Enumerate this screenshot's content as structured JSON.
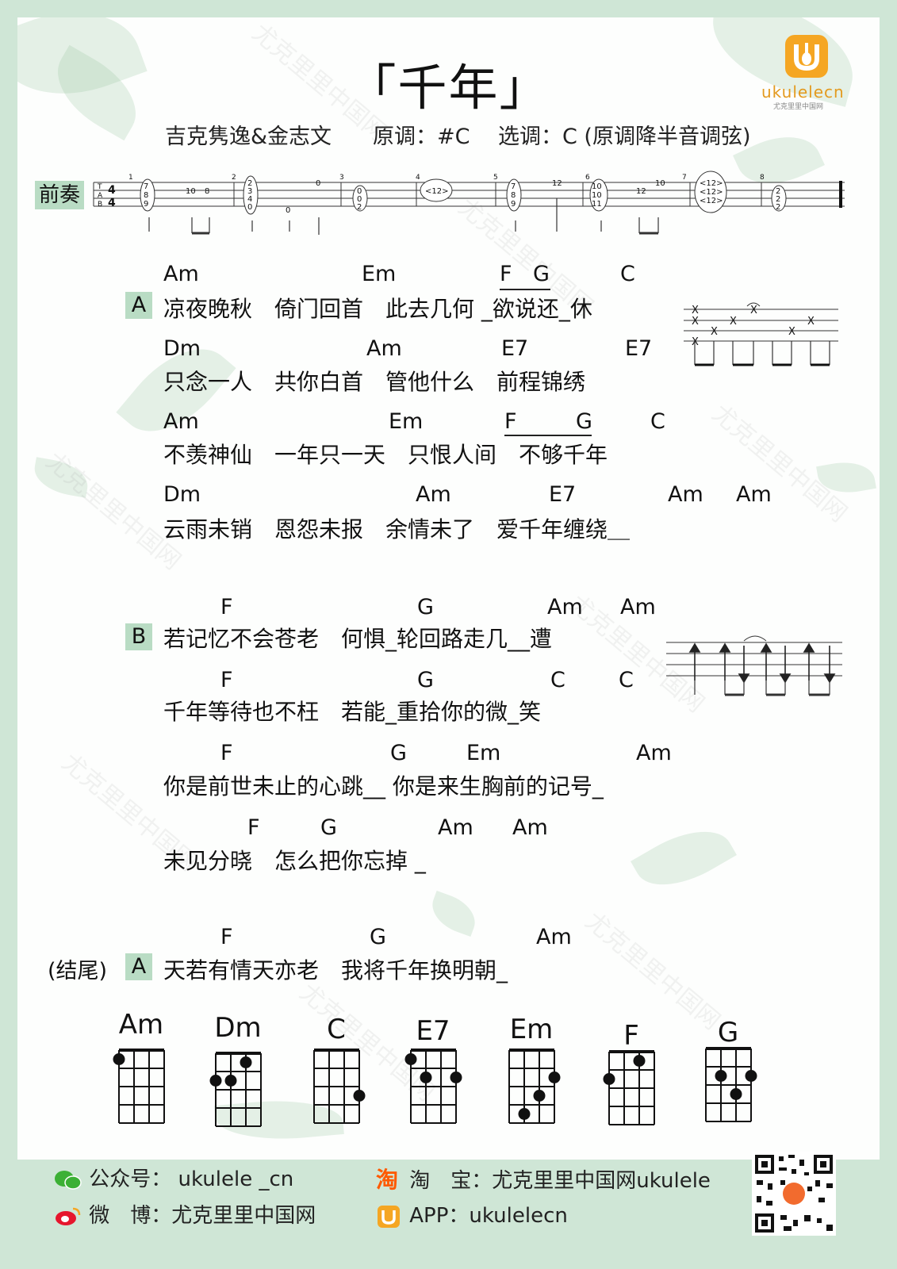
{
  "title": "「千年」",
  "subtitle": {
    "artists": "吉克隽逸&金志文",
    "original_key": "原调：#C",
    "selected_key": "选调：C (原调降半音调弦)"
  },
  "intro": {
    "label": "前奏",
    "time_sig_top": "4",
    "time_sig_bottom": "4",
    "tab_letters": [
      "T",
      "A",
      "B"
    ],
    "measure_numbers": [
      "1",
      "2",
      "3",
      "4",
      "5",
      "6",
      "7",
      "8"
    ],
    "notes": {
      "m1_chord": [
        "7",
        "8",
        "9"
      ],
      "m1_a": "10",
      "m1_b": "8",
      "m2_chord": [
        "2",
        "3",
        "4",
        "0"
      ],
      "m2_a": "0",
      "m2_b": "0",
      "m3_chord": [
        "0",
        "0",
        "2"
      ],
      "m4_harm": "<12>",
      "m5_chord": [
        "7",
        "8",
        "9"
      ],
      "m5_a": "12",
      "m6_chord": [
        "10",
        "10",
        "11"
      ],
      "m6_a": "12",
      "m6_b": "10",
      "m7_chord": [
        "<12>",
        "<12>",
        "<12>"
      ],
      "m8_chord": [
        "2",
        "2",
        "2"
      ]
    }
  },
  "sections": {
    "A": {
      "tag": "A",
      "lines": [
        {
          "chords": [
            "Am",
            "Em",
            "F",
            "G",
            "C"
          ],
          "lyric": "凉夜晚秋　倚门回首　此去几何 _欲说还_休"
        },
        {
          "chords": [
            "Dm",
            "Am",
            "E7",
            "E7"
          ],
          "lyric": "只念一人　共你白首　管他什么　前程锦绣"
        },
        {
          "chords": [
            "Am",
            "Em",
            "F",
            "G",
            "C"
          ],
          "lyric": "不羡神仙　一年只一天　只恨人间　不够千年"
        },
        {
          "chords": [
            "Dm",
            "Am",
            "E7",
            "Am",
            "Am"
          ],
          "lyric": "云雨未销　恩怨未报　余情未了　爱千年缠绕＿"
        }
      ]
    },
    "B": {
      "tag": "B",
      "lines": [
        {
          "chords": [
            "F",
            "G",
            "Am",
            "Am"
          ],
          "lyric": "若记忆不会苍老　何惧_轮回路走几__遭"
        },
        {
          "chords": [
            "F",
            "G",
            "C",
            "C"
          ],
          "lyric": "千年等待也不枉　若能_重拾你的微_笑"
        },
        {
          "chords": [
            "F",
            "G",
            "Em",
            "Am"
          ],
          "lyric": "你是前世未止的心跳__ 你是来生胸前的记号_"
        },
        {
          "chords": [
            "F",
            "G",
            "Am",
            "Am"
          ],
          "lyric": "未见分晓　怎么把你忘掉 _"
        }
      ]
    },
    "ending": {
      "prefix": "(结尾)",
      "tag": "A",
      "chords": [
        "F",
        "G",
        "Am"
      ],
      "lyric": "天若有情天亦老　我将千年换明朝_"
    }
  },
  "rhythm_pattern_a": {
    "marks": [
      "X",
      "X",
      "X",
      "X",
      "X",
      "X",
      "X",
      "X"
    ]
  },
  "chord_diagrams": [
    {
      "name": "Am",
      "dots": [
        [
          0,
          1
        ]
      ]
    },
    {
      "name": "Dm",
      "dots": [
        [
          0,
          2
        ],
        [
          1,
          2
        ],
        [
          2,
          1
        ]
      ]
    },
    {
      "name": "C",
      "dots": [
        [
          3,
          3
        ]
      ]
    },
    {
      "name": "E7",
      "dots": [
        [
          0,
          1
        ],
        [
          1,
          2
        ],
        [
          3,
          2
        ]
      ]
    },
    {
      "name": "Em",
      "dots": [
        [
          1,
          4
        ],
        [
          2,
          3
        ],
        [
          3,
          2
        ]
      ]
    },
    {
      "name": "F",
      "dots": [
        [
          0,
          2
        ],
        [
          2,
          1
        ]
      ]
    },
    {
      "name": "G",
      "dots": [
        [
          1,
          2
        ],
        [
          2,
          3
        ],
        [
          3,
          2
        ]
      ]
    }
  ],
  "footer": {
    "wechat": "公众号：  ukulele _cn",
    "taobao": "淘　宝：尤克里里中国网ukulele",
    "weibo": "微　博：尤克里里中国网",
    "app": "APP：ukulelecn",
    "taobao_icon_char": "淘"
  },
  "brand": {
    "logo_text": "ukulelecn",
    "logo_subtext": "尤克里里中国网",
    "watermark": "尤克里里中国网"
  },
  "colors": {
    "accent_green": "#b9dcc4",
    "brand_orange": "#f5a623",
    "border_green": "#cfe6d6"
  }
}
